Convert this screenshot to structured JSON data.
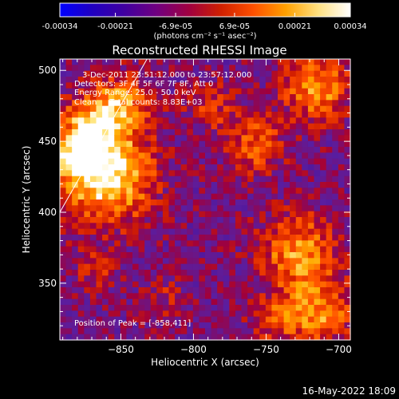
{
  "colorbar": {
    "ticks": [
      "-0.00034",
      "-0.00021",
      "-6.9e-05",
      "6.9e-05",
      "0.00021",
      "0.00034"
    ],
    "tick_values": [
      -0.00034,
      -0.00021,
      -6.9e-05,
      6.9e-05,
      0.00021,
      0.00034
    ],
    "range": [
      -0.00034,
      0.00034
    ],
    "colormap": [
      "#0000ff",
      "#2000c0",
      "#4000a0",
      "#700080",
      "#a00040",
      "#d02000",
      "#ff5000",
      "#ffa000",
      "#ffe080",
      "#ffffff"
    ]
  },
  "units": "(photons cm⁻² s⁻¹ asec⁻²)",
  "title": "Reconstructed RHESSI Image",
  "info_lines": [
    "3-Dec-2011 23:51:12.000 to 23:57:12.000",
    "Detectors: 3F 4F 5F 6F 7F 8F, Att 0",
    "Energy Range: 25.0 - 50.0 keV",
    "Clean     Total counts: 8.83E+03"
  ],
  "peak_label": "Position of Peak = [-858,411]",
  "footer_date": "16-May-2022 18:09",
  "chart_data": {
    "type": "heatmap",
    "title": "Reconstructed RHESSI Image",
    "xlabel": "Heliocentric X (arcsec)",
    "ylabel": "Heliocentric Y (arcsec)",
    "xlim": [
      -892,
      -692
    ],
    "ylim": [
      310,
      508
    ],
    "x_ticks": [
      -850,
      -800,
      -750,
      -700
    ],
    "x_tick_labels": [
      "−850",
      "−800",
      "−750",
      "−700"
    ],
    "y_ticks": [
      350,
      400,
      450,
      500
    ],
    "y_tick_labels": [
      "350",
      "400",
      "450",
      "500"
    ],
    "peak": [
      -858,
      411
    ],
    "limb_line": {
      "x": [
        -892,
        -832
      ],
      "y": [
        400,
        508
      ]
    },
    "grid": false,
    "blobs": [
      {
        "x": -860,
        "y": 425,
        "s": 22,
        "a": 0.00034
      },
      {
        "x": -868,
        "y": 462,
        "s": 16,
        "a": 0.00024
      },
      {
        "x": -848,
        "y": 478,
        "s": 14,
        "a": 0.00018
      },
      {
        "x": -880,
        "y": 440,
        "s": 12,
        "a": 0.0002
      },
      {
        "x": -728,
        "y": 372,
        "s": 18,
        "a": 0.00024
      },
      {
        "x": -712,
        "y": 330,
        "s": 16,
        "a": 0.00022
      },
      {
        "x": -715,
        "y": 488,
        "s": 16,
        "a": 0.00024
      },
      {
        "x": -758,
        "y": 448,
        "s": 14,
        "a": 0.00018
      },
      {
        "x": -788,
        "y": 475,
        "s": 12,
        "a": 0.00012
      },
      {
        "x": -742,
        "y": 325,
        "s": 12,
        "a": 0.00015
      },
      {
        "x": -868,
        "y": 360,
        "s": 10,
        "a": 0.0001
      },
      {
        "x": -820,
        "y": 340,
        "s": 10,
        "a": 8e-05
      }
    ]
  }
}
